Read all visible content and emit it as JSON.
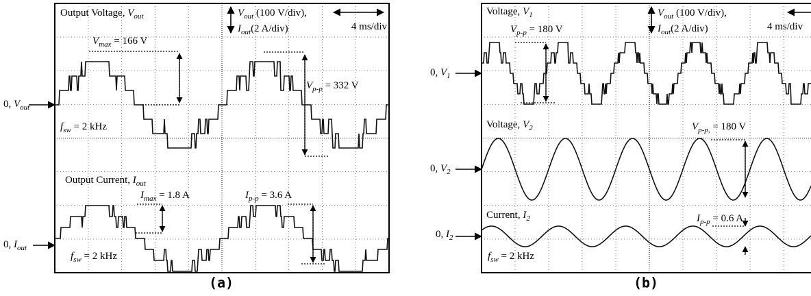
{
  "panel_a": {
    "caption": "(a)",
    "zero_vout": {
      "pre": "0, ",
      "sym": "V",
      "sub": "out"
    },
    "zero_iout": {
      "pre": "0, ",
      "sym": "I",
      "sub": "out"
    },
    "title_v": {
      "pre": "Output Voltage, ",
      "sym": "V",
      "sub": "out"
    },
    "scale_v": {
      "sym": "V",
      "sub": "out",
      "post": " (100 V/div),"
    },
    "scale_i": {
      "sym": "I",
      "sub": "out",
      "post": "(2 A/div)"
    },
    "time_div": {
      "pre": "4 ms/div"
    },
    "vmax": {
      "sym": "V",
      "sub": "max",
      "post": " = 166 V"
    },
    "vpp": {
      "sym": "V",
      "sub": "p-p",
      "post": " = 332 V"
    },
    "fsw_v": {
      "sym": "f",
      "sub": "sw",
      "post": " = 2 kHz"
    },
    "title_i": {
      "pre": "Output Current, ",
      "sym": "I",
      "sub": "out"
    },
    "imax": {
      "sym": "I",
      "sub": "max",
      "post": " = 1.8 A"
    },
    "ipp": {
      "sym": "I",
      "sub": "p-p",
      "post": " = 3.6 A"
    },
    "fsw_i": {
      "sym": "f",
      "sub": "sw",
      "post": " = 2 kHz"
    }
  },
  "panel_b": {
    "caption": "(b)",
    "zero_v1": {
      "pre": "0, ",
      "sym": "V",
      "sub": "1"
    },
    "zero_v2": {
      "pre": "0, ",
      "sym": "V",
      "sub": "2"
    },
    "zero_i2": {
      "pre": "0, ",
      "sym": "I",
      "sub": "2"
    },
    "title_v1": {
      "pre": "Voltage, ",
      "sym": "V",
      "sub": "1"
    },
    "vpp1": {
      "sym": "V",
      "sub": "p-p",
      "post": " = 180 V"
    },
    "scale_v": {
      "sym": "V",
      "sub": "out",
      "post": " (100 V/div),"
    },
    "scale_i": {
      "sym": "I",
      "sub": "out",
      "post": "(2 A/div)"
    },
    "time_div": {
      "pre": "4 ms/div"
    },
    "title_v2": {
      "pre": "Voltage, ",
      "sym": "V",
      "sub": "2"
    },
    "vpp2": {
      "sym": "V",
      "sub": "p-p,",
      "post": " = 180 V"
    },
    "title_i2": {
      "pre": "Current, ",
      "sym": "I",
      "sub": "2"
    },
    "ipp": {
      "sym": "I",
      "sub": "p-p",
      "post": " = 0.6 A"
    },
    "fsw": {
      "sym": "f",
      "sub": "sw",
      "post": " = 2 kHz"
    }
  }
}
